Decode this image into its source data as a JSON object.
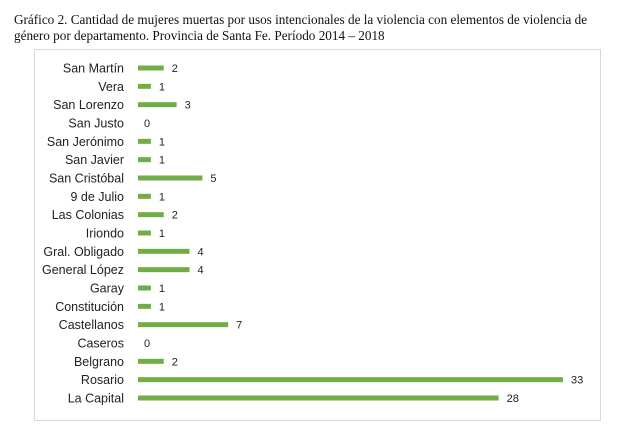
{
  "caption": "Gráfico 2. Cantidad de mujeres muertas por usos intencionales de la violencia con elementos de violencia de género por departamento. Provincia de Santa Fe. Período 2014 – 2018",
  "chart_data": {
    "type": "bar",
    "orientation": "horizontal",
    "title": "Gráfico 2. Cantidad de mujeres muertas por usos intencionales de la violencia con elementos de violencia de género por departamento. Provincia de Santa Fe. Período 2014 – 2018",
    "categories": [
      "San Martín",
      "Vera",
      "San Lorenzo",
      "San Justo",
      "San Jerónimo",
      "San Javier",
      "San Cristóbal",
      "9 de Julio",
      "Las Colonias",
      "Iriondo",
      "Gral. Obligado",
      "General López",
      "Garay",
      "Constitución",
      "Castellanos",
      "Caseros",
      "Belgrano",
      "Rosario",
      "La Capital"
    ],
    "values": [
      2,
      1,
      3,
      0,
      1,
      1,
      5,
      1,
      2,
      1,
      4,
      4,
      1,
      1,
      7,
      0,
      2,
      33,
      28
    ],
    "xlabel": "",
    "ylabel": "",
    "xlim": [
      0,
      33
    ],
    "grid": false,
    "bar_color": "#70ad47"
  }
}
